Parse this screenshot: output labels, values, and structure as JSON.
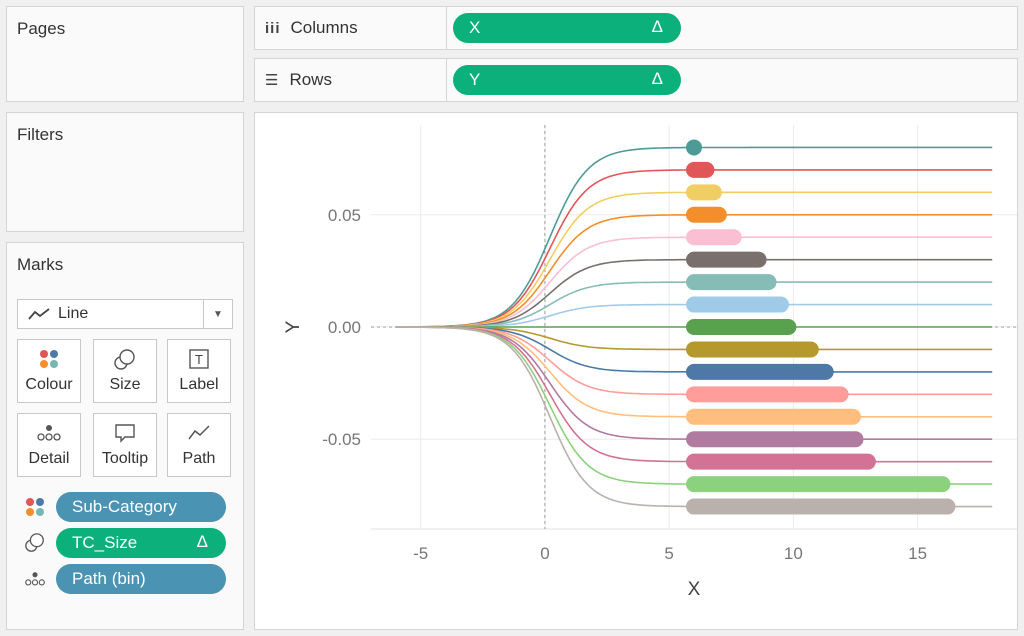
{
  "cards": {
    "pages": "Pages",
    "filters": "Filters",
    "marks": "Marks"
  },
  "shelves": {
    "columns": {
      "label": "Columns",
      "icon": "iii",
      "pill": "X",
      "pill_mark": "Δ"
    },
    "rows": {
      "label": "Rows",
      "icon": "☰",
      "pill": "Y",
      "pill_mark": "Δ"
    }
  },
  "marks": {
    "type": "Line",
    "buttons": [
      "Colour",
      "Size",
      "Label",
      "Detail",
      "Tooltip",
      "Path"
    ],
    "fields": [
      {
        "icon": "colour-icon",
        "label": "Sub-Category",
        "color": "#4a93b3",
        "mark": ""
      },
      {
        "icon": "size-icon",
        "label": "TC_Size",
        "color": "#0cb07a",
        "mark": "Δ"
      },
      {
        "icon": "detail-icon",
        "label": "Path (bin)",
        "color": "#4a93b3",
        "mark": ""
      }
    ]
  },
  "chart_data": {
    "type": "line",
    "xlabel": "X",
    "ylabel": "Y",
    "xlim": [
      -7,
      19
    ],
    "ylim": [
      -0.09,
      0.09
    ],
    "xticks": [
      "-5",
      "0",
      "5",
      "10",
      "15"
    ],
    "yticks": [
      "0.05",
      "0.00",
      "-0.05"
    ],
    "grid": true,
    "bar_start_x": 6,
    "series": [
      {
        "y": 0.08,
        "color": "#4e9a96",
        "bar_end": 6.0
      },
      {
        "y": 0.07,
        "color": "#e15759",
        "bar_end": 6.5
      },
      {
        "y": 0.06,
        "color": "#f1ce63",
        "bar_end": 6.8
      },
      {
        "y": 0.05,
        "color": "#f28e2b",
        "bar_end": 7.0
      },
      {
        "y": 0.04,
        "color": "#fabfd2",
        "bar_end": 7.6
      },
      {
        "y": 0.03,
        "color": "#79706e",
        "bar_end": 8.6
      },
      {
        "y": 0.02,
        "color": "#86bcb6",
        "bar_end": 9.0
      },
      {
        "y": 0.01,
        "color": "#a0cbe8",
        "bar_end": 9.5
      },
      {
        "y": 0.0,
        "color": "#59a14f",
        "bar_end": 9.8
      },
      {
        "y": -0.01,
        "color": "#b6992d",
        "bar_end": 10.7
      },
      {
        "y": -0.02,
        "color": "#4e79a7",
        "bar_end": 11.3
      },
      {
        "y": -0.03,
        "color": "#ff9d9a",
        "bar_end": 11.9
      },
      {
        "y": -0.04,
        "color": "#ffbe7d",
        "bar_end": 12.4
      },
      {
        "y": -0.05,
        "color": "#b07aa1",
        "bar_end": 12.5
      },
      {
        "y": -0.06,
        "color": "#d37295",
        "bar_end": 13.0
      },
      {
        "y": -0.07,
        "color": "#8cd17d",
        "bar_end": 16.0
      },
      {
        "y": -0.08,
        "color": "#bab0ac",
        "bar_end": 16.2
      }
    ]
  }
}
